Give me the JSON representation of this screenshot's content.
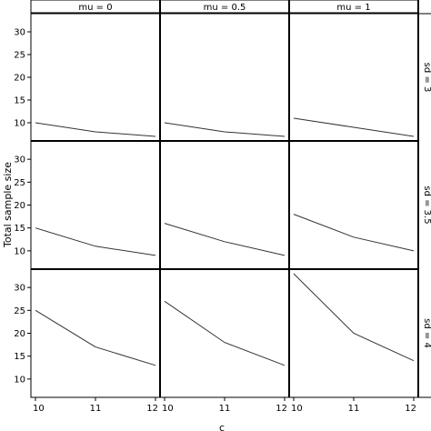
{
  "chart_data": {
    "type": "line",
    "layout": "facet-grid",
    "ylabel": "Total sample size",
    "xlabel": "c",
    "x": [
      10,
      11,
      12
    ],
    "x_ticks": [
      "10",
      "11",
      "12"
    ],
    "ylim": [
      6,
      34
    ],
    "y_ticks": [
      "10",
      "15",
      "20",
      "25",
      "30"
    ],
    "column_strips": [
      "mu = 0",
      "mu = 0.5",
      "mu = 1"
    ],
    "row_strips": [
      "sd = 3",
      "sd = 3.5",
      "sd = 4"
    ],
    "line_color": "#333333",
    "panels": [
      {
        "row": 0,
        "col": 0,
        "values": [
          10,
          8,
          7
        ]
      },
      {
        "row": 0,
        "col": 1,
        "values": [
          10,
          8,
          7
        ]
      },
      {
        "row": 0,
        "col": 2,
        "values": [
          11,
          9,
          7
        ]
      },
      {
        "row": 1,
        "col": 0,
        "values": [
          15,
          11,
          9
        ]
      },
      {
        "row": 1,
        "col": 1,
        "values": [
          16,
          12,
          9
        ]
      },
      {
        "row": 1,
        "col": 2,
        "values": [
          18,
          13,
          10
        ]
      },
      {
        "row": 2,
        "col": 0,
        "values": [
          25,
          17,
          13
        ]
      },
      {
        "row": 2,
        "col": 1,
        "values": [
          27,
          18,
          13
        ]
      },
      {
        "row": 2,
        "col": 2,
        "values": [
          33,
          20,
          14
        ]
      }
    ]
  }
}
